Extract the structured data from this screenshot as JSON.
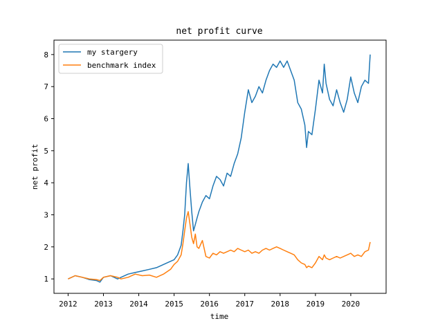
{
  "chart_data": {
    "type": "line",
    "title": "net profit curve",
    "xlabel": "time",
    "ylabel": "net profit",
    "xlim": [
      2011.6,
      2021.0
    ],
    "ylim": [
      0.55,
      8.45
    ],
    "grid": false,
    "legend_position": "top-left",
    "x_ticks": [
      2012,
      2013,
      2014,
      2015,
      2016,
      2017,
      2018,
      2019,
      2020
    ],
    "x_tick_labels": [
      "2012",
      "2013",
      "2014",
      "2015",
      "2016",
      "2017",
      "2018",
      "2019",
      "2020"
    ],
    "y_ticks": [
      1,
      2,
      3,
      4,
      5,
      6,
      7,
      8
    ],
    "y_tick_labels": [
      "1",
      "2",
      "3",
      "4",
      "5",
      "6",
      "7",
      "8"
    ],
    "series": [
      {
        "name": "my stargery",
        "color": "#1f77b4",
        "x": [
          2012.0,
          2012.2,
          2012.4,
          2012.6,
          2012.8,
          2012.9,
          2013.0,
          2013.2,
          2013.4,
          2013.5,
          2013.7,
          2013.9,
          2014.1,
          2014.3,
          2014.5,
          2014.7,
          2014.9,
          2015.0,
          2015.1,
          2015.2,
          2015.25,
          2015.3,
          2015.35,
          2015.4,
          2015.45,
          2015.5,
          2015.55,
          2015.6,
          2015.65,
          2015.7,
          2015.8,
          2015.9,
          2016.0,
          2016.1,
          2016.2,
          2016.3,
          2016.4,
          2016.5,
          2016.6,
          2016.7,
          2016.8,
          2016.9,
          2017.0,
          2017.1,
          2017.2,
          2017.3,
          2017.4,
          2017.5,
          2017.6,
          2017.7,
          2017.8,
          2017.9,
          2018.0,
          2018.1,
          2018.2,
          2018.3,
          2018.4,
          2018.5,
          2018.6,
          2018.7,
          2018.75,
          2018.8,
          2018.9,
          2019.0,
          2019.1,
          2019.2,
          2019.25,
          2019.3,
          2019.4,
          2019.5,
          2019.6,
          2019.7,
          2019.8,
          2019.9,
          2020.0,
          2020.1,
          2020.2,
          2020.3,
          2020.4,
          2020.5,
          2020.55
        ],
        "y": [
          1.0,
          1.1,
          1.05,
          0.98,
          0.95,
          0.9,
          1.05,
          1.1,
          1.0,
          1.05,
          1.15,
          1.2,
          1.25,
          1.3,
          1.35,
          1.45,
          1.55,
          1.6,
          1.75,
          2.05,
          2.5,
          3.0,
          4.0,
          4.6,
          3.8,
          3.1,
          2.5,
          2.7,
          2.9,
          3.1,
          3.4,
          3.6,
          3.5,
          3.9,
          4.2,
          4.1,
          3.9,
          4.3,
          4.2,
          4.6,
          4.9,
          5.4,
          6.2,
          6.9,
          6.5,
          6.7,
          7.0,
          6.8,
          7.2,
          7.5,
          7.7,
          7.6,
          7.8,
          7.6,
          7.8,
          7.5,
          7.2,
          6.5,
          6.3,
          5.8,
          5.1,
          5.6,
          5.5,
          6.3,
          7.2,
          6.8,
          7.7,
          7.1,
          6.6,
          6.4,
          6.9,
          6.5,
          6.2,
          6.6,
          7.3,
          6.8,
          6.5,
          7.0,
          7.2,
          7.1,
          8.0
        ]
      },
      {
        "name": "benchmark index",
        "color": "#ff7f0e",
        "x": [
          2012.0,
          2012.2,
          2012.4,
          2012.6,
          2012.8,
          2012.9,
          2013.0,
          2013.2,
          2013.4,
          2013.5,
          2013.7,
          2013.9,
          2014.1,
          2014.3,
          2014.5,
          2014.7,
          2014.9,
          2015.0,
          2015.1,
          2015.2,
          2015.25,
          2015.3,
          2015.35,
          2015.4,
          2015.45,
          2015.5,
          2015.55,
          2015.6,
          2015.65,
          2015.7,
          2015.8,
          2015.9,
          2016.0,
          2016.1,
          2016.2,
          2016.3,
          2016.4,
          2016.5,
          2016.6,
          2016.7,
          2016.8,
          2016.9,
          2017.0,
          2017.1,
          2017.2,
          2017.3,
          2017.4,
          2017.5,
          2017.6,
          2017.7,
          2017.8,
          2017.9,
          2018.0,
          2018.1,
          2018.2,
          2018.3,
          2018.4,
          2018.5,
          2018.6,
          2018.7,
          2018.75,
          2018.8,
          2018.9,
          2019.0,
          2019.1,
          2019.2,
          2019.25,
          2019.3,
          2019.4,
          2019.5,
          2019.6,
          2019.7,
          2019.8,
          2019.9,
          2020.0,
          2020.1,
          2020.2,
          2020.3,
          2020.4,
          2020.5,
          2020.55
        ],
        "y": [
          1.0,
          1.1,
          1.05,
          1.0,
          0.98,
          0.95,
          1.05,
          1.1,
          1.05,
          1.0,
          1.05,
          1.15,
          1.1,
          1.12,
          1.05,
          1.15,
          1.3,
          1.45,
          1.55,
          1.75,
          2.1,
          2.5,
          2.9,
          3.1,
          2.7,
          2.3,
          2.1,
          2.4,
          2.0,
          1.95,
          2.2,
          1.7,
          1.65,
          1.8,
          1.75,
          1.85,
          1.8,
          1.85,
          1.9,
          1.85,
          1.95,
          1.9,
          1.85,
          1.9,
          1.8,
          1.85,
          1.8,
          1.9,
          1.95,
          1.9,
          1.95,
          2.0,
          1.95,
          1.9,
          1.85,
          1.8,
          1.75,
          1.6,
          1.5,
          1.45,
          1.35,
          1.4,
          1.35,
          1.5,
          1.7,
          1.6,
          1.75,
          1.65,
          1.6,
          1.65,
          1.7,
          1.65,
          1.7,
          1.75,
          1.8,
          1.7,
          1.75,
          1.7,
          1.85,
          1.9,
          2.15
        ]
      }
    ]
  }
}
